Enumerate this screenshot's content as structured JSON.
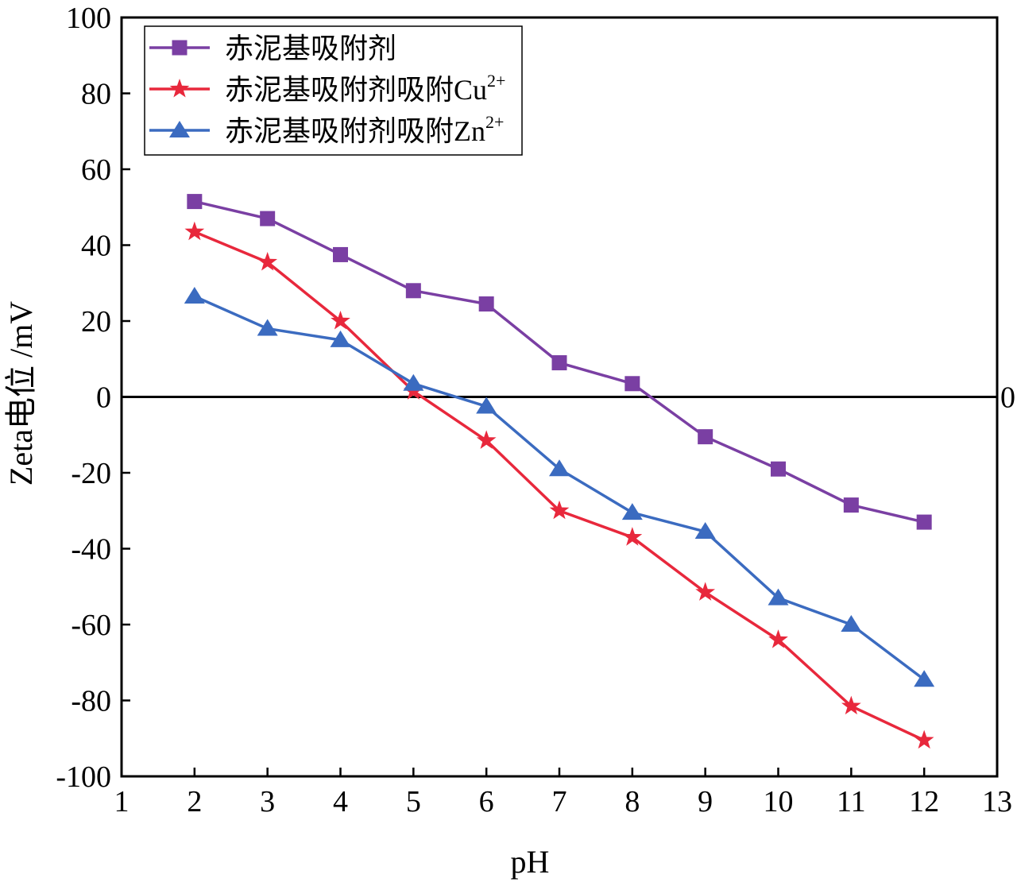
{
  "chart_data": {
    "type": "line",
    "xlabel": "pH",
    "ylabel": "Zeta电位 /mV",
    "xlim": [
      1,
      13
    ],
    "ylim": [
      -100,
      100
    ],
    "xticks": [
      1,
      2,
      3,
      4,
      5,
      6,
      7,
      8,
      9,
      10,
      11,
      12,
      13
    ],
    "yticks": [
      100,
      80,
      60,
      40,
      20,
      0,
      -20,
      -40,
      -60,
      -80,
      -100
    ],
    "ytick_labels": [
      "100",
      "80",
      "60",
      "40",
      "20",
      "0",
      "-20",
      "-40",
      "-60",
      "-80",
      "-100"
    ],
    "reference_line": {
      "y": 0,
      "right_label": "0"
    },
    "grid": false,
    "legend_position": "top-left",
    "x": [
      2,
      3,
      4,
      5,
      6,
      7,
      8,
      9,
      10,
      11,
      12
    ],
    "series": [
      {
        "name": "赤泥基吸附剂",
        "name_base": "赤泥基吸附剂",
        "name_sup": "",
        "color": "#7a3fa3",
        "marker": "square",
        "values": [
          51.5,
          47,
          37.5,
          28,
          24.5,
          9,
          3.5,
          -10.5,
          -19,
          -28.5,
          -33
        ]
      },
      {
        "name": "赤泥基吸附剂吸附Cu2+",
        "name_base": "赤泥基吸附剂吸附Cu",
        "name_sup": "2+",
        "color": "#e8283c",
        "marker": "star",
        "values": [
          43.5,
          35.5,
          20,
          1.5,
          -11.5,
          -30,
          -37,
          -51.5,
          -64,
          -81.5,
          -90.5
        ]
      },
      {
        "name": "赤泥基吸附剂吸附Zn2+",
        "name_base": "赤泥基吸附剂吸附Zn",
        "name_sup": "2+",
        "color": "#3b6bc0",
        "marker": "triangle",
        "values": [
          26.5,
          18,
          15,
          3.5,
          -2.5,
          -19,
          -30.5,
          -35.5,
          -53,
          -60,
          -74.5
        ]
      }
    ]
  }
}
